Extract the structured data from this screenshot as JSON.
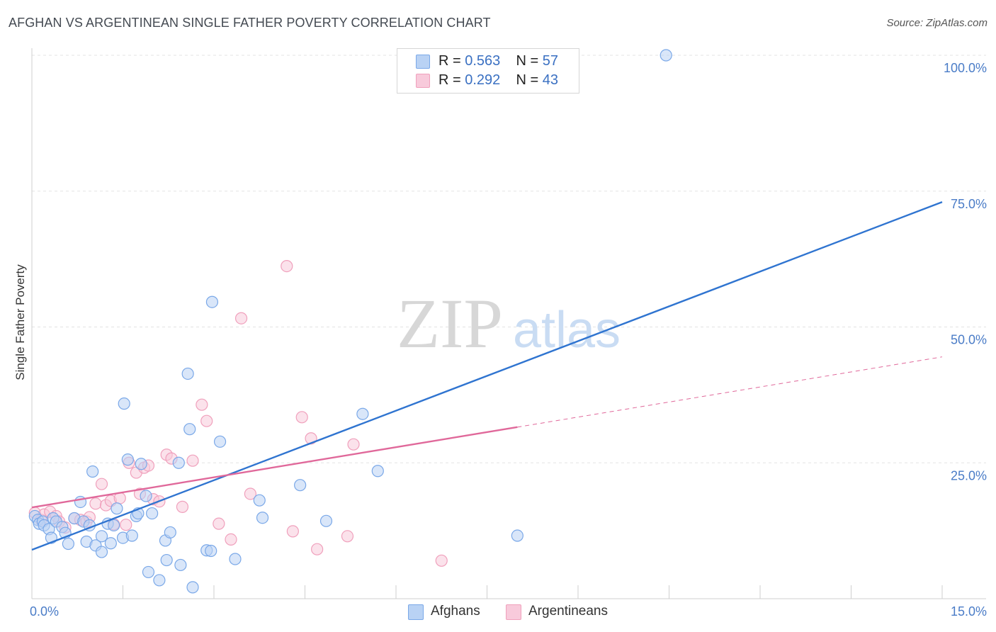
{
  "chart_data": {
    "type": "scatter",
    "title": "AFGHAN VS ARGENTINEAN SINGLE FATHER POVERTY CORRELATION CHART",
    "source": "Source: ZipAtlas.com",
    "ylabel": "Single Father Poverty",
    "xlabel": "",
    "xlim": [
      0,
      15
    ],
    "ylim": [
      0,
      100
    ],
    "x_tick_labels": [
      "0.0%",
      "15.0%"
    ],
    "y_tick_labels": [
      {
        "value": 100,
        "label": "100.0%"
      },
      {
        "value": 75,
        "label": "75.0%"
      },
      {
        "value": 50,
        "label": "50.0%"
      },
      {
        "value": 25,
        "label": "25.0%"
      }
    ],
    "watermark": {
      "zip": "ZIP",
      "atlas": "atlas"
    },
    "legend": [
      {
        "r_label": "R =",
        "r": "0.563",
        "n_label": "N =",
        "n": "57"
      },
      {
        "r_label": "R =",
        "r": "0.292",
        "n_label": "N =",
        "n": "43"
      }
    ],
    "series": [
      {
        "name": "Afghans",
        "color": "#7aa8e8",
        "fill": "#b9d2f4",
        "trend_color": "#2f74d0",
        "trend": {
          "x0": 0.0,
          "y0": 9.0,
          "x1": 15.0,
          "y1": 73.0,
          "dashed_from": null
        },
        "points": [
          [
            0.05,
            15.2
          ],
          [
            0.1,
            14.5
          ],
          [
            0.12,
            13.8
          ],
          [
            0.18,
            14.2
          ],
          [
            0.2,
            13.5
          ],
          [
            0.28,
            12.8
          ],
          [
            0.32,
            11.2
          ],
          [
            0.35,
            14.8
          ],
          [
            0.4,
            14.2
          ],
          [
            0.5,
            13.2
          ],
          [
            0.55,
            12.1
          ],
          [
            0.6,
            10.1
          ],
          [
            0.7,
            14.8
          ],
          [
            0.8,
            17.8
          ],
          [
            0.85,
            14.2
          ],
          [
            0.9,
            10.5
          ],
          [
            0.95,
            13.5
          ],
          [
            1.0,
            23.4
          ],
          [
            1.05,
            9.8
          ],
          [
            1.15,
            8.6
          ],
          [
            1.15,
            11.5
          ],
          [
            1.25,
            13.8
          ],
          [
            1.3,
            10.2
          ],
          [
            1.35,
            13.5
          ],
          [
            1.4,
            16.6
          ],
          [
            1.5,
            11.2
          ],
          [
            1.52,
            35.9
          ],
          [
            1.58,
            25.6
          ],
          [
            1.65,
            11.6
          ],
          [
            1.72,
            15.2
          ],
          [
            1.75,
            15.7
          ],
          [
            1.8,
            24.8
          ],
          [
            1.88,
            18.9
          ],
          [
            1.92,
            4.9
          ],
          [
            1.98,
            15.7
          ],
          [
            2.1,
            3.4
          ],
          [
            2.2,
            10.7
          ],
          [
            2.22,
            7.1
          ],
          [
            2.28,
            12.2
          ],
          [
            2.42,
            25.0
          ],
          [
            2.45,
            6.2
          ],
          [
            2.57,
            41.4
          ],
          [
            2.6,
            31.2
          ],
          [
            2.65,
            2.1
          ],
          [
            2.88,
            8.9
          ],
          [
            2.95,
            8.8
          ],
          [
            2.97,
            54.6
          ],
          [
            3.1,
            28.9
          ],
          [
            3.35,
            7.3
          ],
          [
            3.75,
            18.1
          ],
          [
            3.8,
            14.9
          ],
          [
            4.42,
            20.9
          ],
          [
            4.85,
            14.3
          ],
          [
            5.45,
            34.0
          ],
          [
            5.7,
            23.5
          ],
          [
            8.0,
            11.6
          ],
          [
            10.45,
            100.0
          ]
        ]
      },
      {
        "name": "Argentineans",
        "color": "#f0a0bc",
        "fill": "#f8cadb",
        "trend_color": "#e0689a",
        "trend": {
          "x0": 0.0,
          "y0": 16.8,
          "x1": 15.0,
          "y1": 44.5,
          "dashed_from": 8.0
        },
        "points": [
          [
            0.05,
            15.8
          ],
          [
            0.15,
            14.5
          ],
          [
            0.2,
            15.5
          ],
          [
            0.3,
            16.0
          ],
          [
            0.4,
            15.2
          ],
          [
            0.45,
            14.2
          ],
          [
            0.55,
            13.1
          ],
          [
            0.7,
            14.8
          ],
          [
            0.8,
            14.5
          ],
          [
            0.9,
            14.2
          ],
          [
            0.95,
            15.0
          ],
          [
            1.05,
            17.5
          ],
          [
            1.15,
            21.1
          ],
          [
            1.22,
            17.2
          ],
          [
            1.3,
            18.0
          ],
          [
            1.35,
            13.7
          ],
          [
            1.45,
            18.5
          ],
          [
            1.55,
            13.6
          ],
          [
            1.6,
            25.0
          ],
          [
            1.72,
            23.2
          ],
          [
            1.78,
            19.3
          ],
          [
            1.85,
            24.1
          ],
          [
            1.92,
            24.5
          ],
          [
            2.0,
            18.3
          ],
          [
            2.1,
            17.9
          ],
          [
            2.22,
            26.5
          ],
          [
            2.3,
            25.8
          ],
          [
            2.48,
            16.9
          ],
          [
            2.65,
            25.4
          ],
          [
            2.8,
            35.7
          ],
          [
            2.88,
            32.7
          ],
          [
            3.08,
            13.8
          ],
          [
            3.28,
            10.9
          ],
          [
            3.45,
            51.6
          ],
          [
            3.6,
            19.3
          ],
          [
            4.2,
            61.2
          ],
          [
            4.3,
            12.4
          ],
          [
            4.45,
            33.4
          ],
          [
            4.6,
            29.5
          ],
          [
            4.7,
            9.1
          ],
          [
            5.2,
            11.5
          ],
          [
            5.3,
            28.4
          ],
          [
            6.75,
            7.0
          ]
        ]
      }
    ]
  }
}
